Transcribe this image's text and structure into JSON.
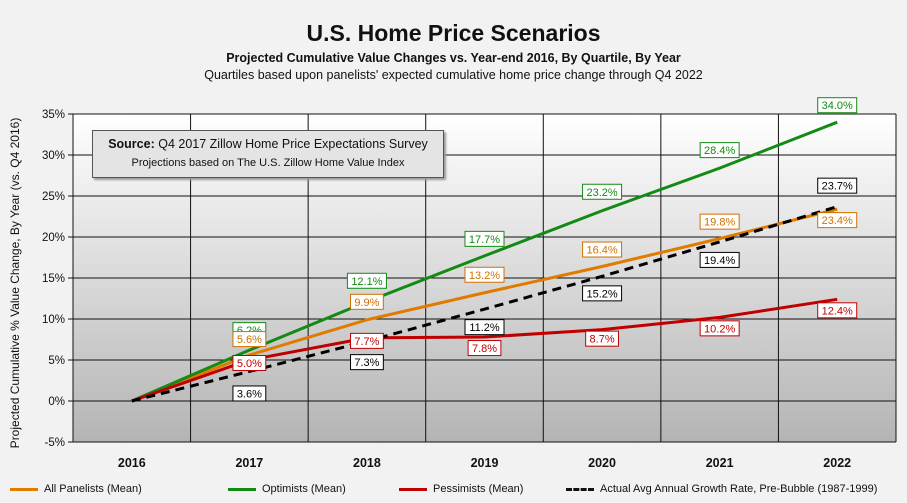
{
  "chart_data": {
    "type": "line",
    "title": "U.S. Home Price Scenarios",
    "subtitle": "Projected Cumulative Value Changes vs. Year-end 2016, By Quartile, By Year",
    "subtitle2": "Quartiles based upon panelists' expected cumulative home price change through Q4 2022",
    "ylabel": "Projected Cumulative % Value Change, By Year (vs. Q4 2016)",
    "xlabel": "",
    "categories": [
      "2016",
      "2017",
      "2018",
      "2019",
      "2020",
      "2021",
      "2022"
    ],
    "yticks": [
      "-5%",
      "0%",
      "5%",
      "10%",
      "15%",
      "20%",
      "25%",
      "30%",
      "35%"
    ],
    "ylim": [
      -5,
      35
    ],
    "grid": true,
    "legend_position": "bottom",
    "source_box": {
      "title_bold": "Source:",
      "title_rest": " Q4 2017 Zillow Home Price Expectations Survey",
      "subtitle": "Projections based on The U.S. Zillow Home Value Index"
    },
    "series": [
      {
        "name": "All Panelists (Mean)",
        "color": "#e07b00",
        "style": "solid",
        "values": [
          0,
          5.6,
          9.9,
          13.2,
          16.4,
          19.8,
          23.4
        ],
        "labels": [
          "",
          "5.6%",
          "9.9%",
          "13.2%",
          "16.4%",
          "19.8%",
          "23.4%"
        ]
      },
      {
        "name": "Optimists (Mean)",
        "color": "#138a13",
        "style": "solid",
        "values": [
          0,
          6.2,
          12.1,
          17.7,
          23.2,
          28.4,
          34.0
        ],
        "labels": [
          "",
          "6.2%",
          "12.1%",
          "17.7%",
          "23.2%",
          "28.4%",
          "34.0%"
        ]
      },
      {
        "name": "Pessimists (Mean)",
        "color": "#c00000",
        "style": "solid",
        "values": [
          0,
          5.0,
          7.7,
          7.8,
          8.7,
          10.2,
          12.4
        ],
        "labels": [
          "",
          "5.0%",
          "7.7%",
          "7.8%",
          "8.7%",
          "10.2%",
          "12.4%"
        ]
      },
      {
        "name": "Actual Avg Annual Growth Rate, Pre-Bubble (1987-1999)",
        "color": "#000000",
        "style": "dashed",
        "values": [
          0,
          3.6,
          7.3,
          11.2,
          15.2,
          19.4,
          23.7
        ],
        "labels": [
          "",
          "3.6%",
          "7.3%",
          "11.2%",
          "15.2%",
          "19.4%",
          "23.7%"
        ]
      }
    ]
  }
}
